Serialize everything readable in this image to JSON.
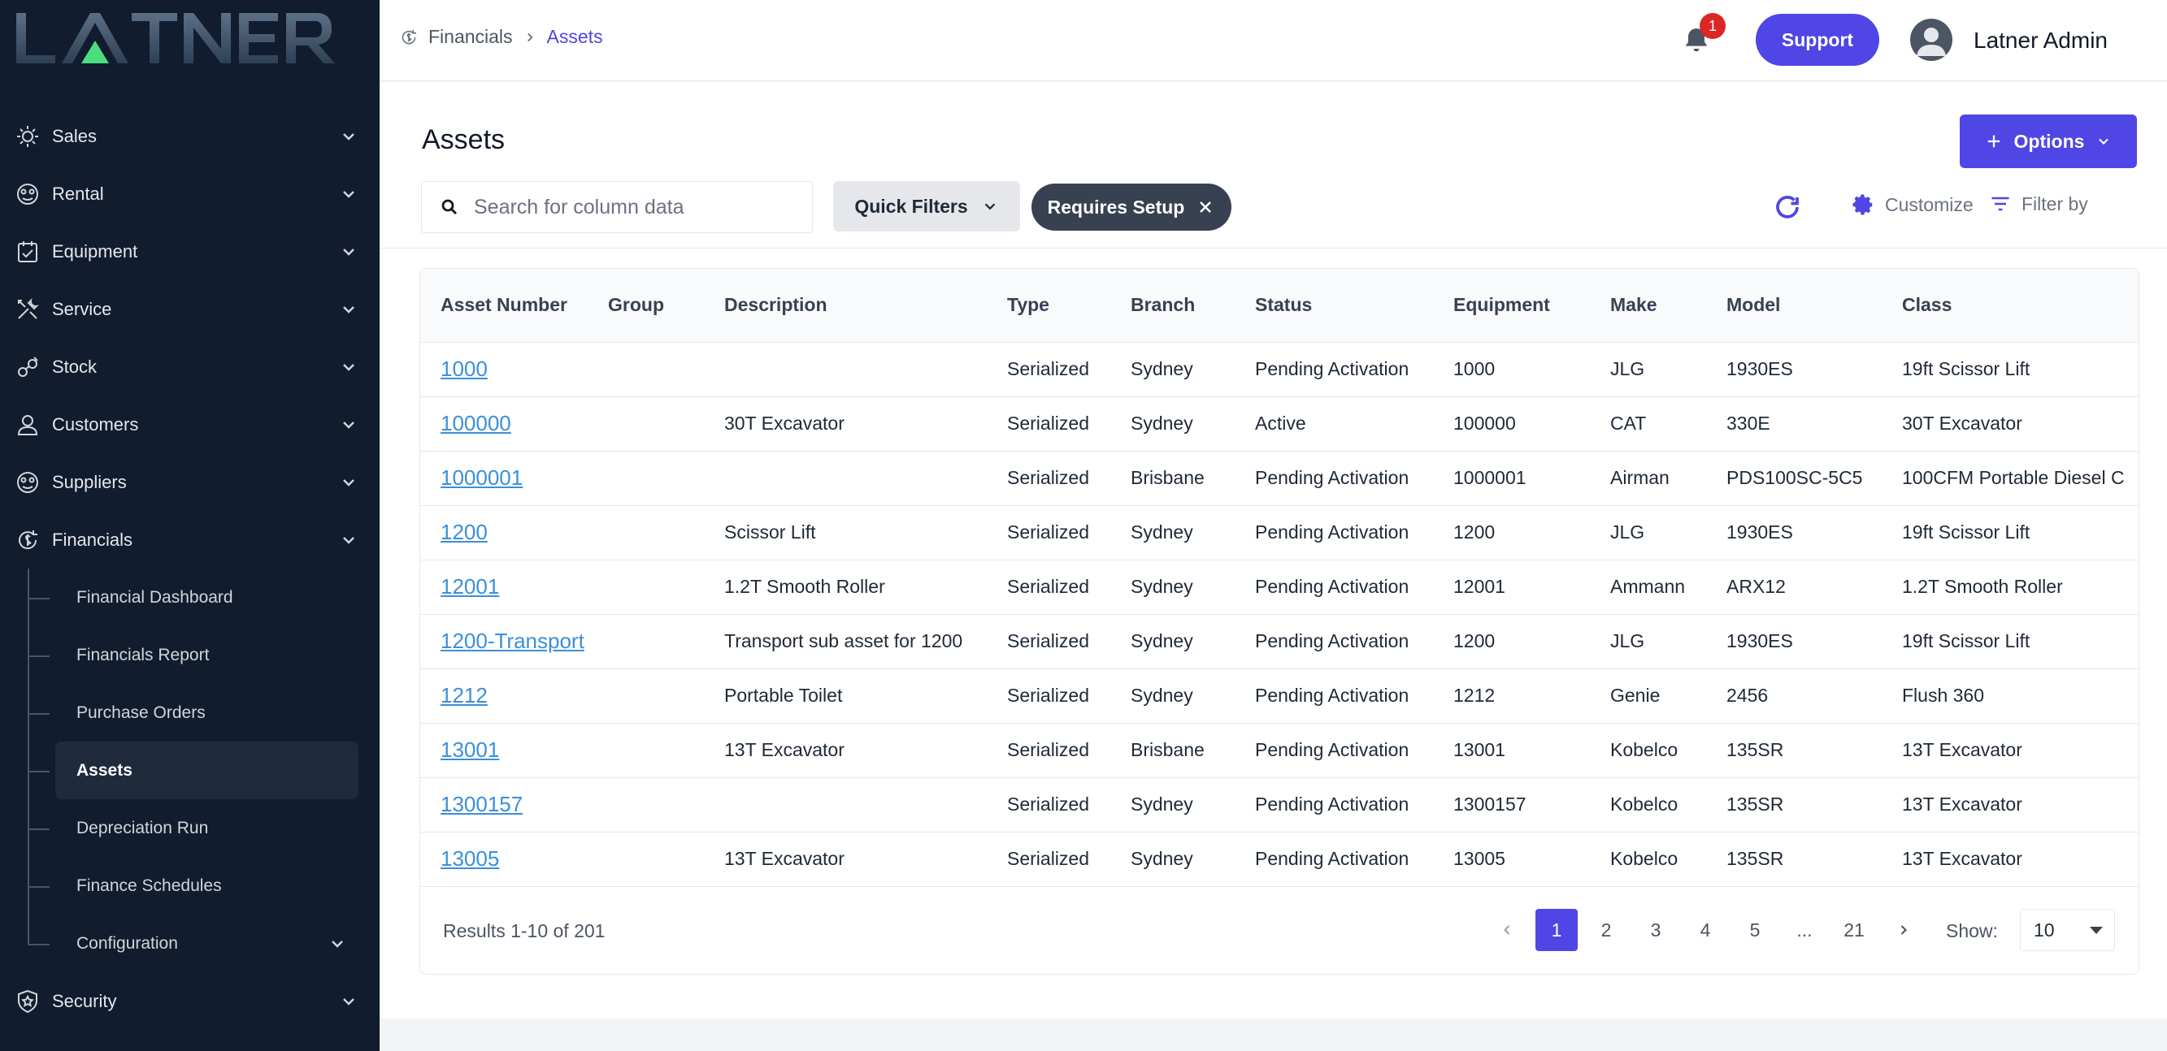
{
  "brand": {
    "logo_text": "LATNER",
    "accent": "#4f46e5",
    "sidebar_bg": "#111c2e",
    "logo_green": "#4ade80"
  },
  "sidebar": {
    "items": [
      {
        "label": "Sales",
        "icon": "sales-icon"
      },
      {
        "label": "Rental",
        "icon": "rental-icon"
      },
      {
        "label": "Equipment",
        "icon": "equipment-icon"
      },
      {
        "label": "Service",
        "icon": "service-icon"
      },
      {
        "label": "Stock",
        "icon": "stock-icon"
      },
      {
        "label": "Customers",
        "icon": "customers-icon"
      },
      {
        "label": "Suppliers",
        "icon": "suppliers-icon"
      },
      {
        "label": "Financials",
        "icon": "financials-icon",
        "expanded": true
      }
    ],
    "financials_sub": [
      {
        "label": "Financial Dashboard"
      },
      {
        "label": "Financials Report"
      },
      {
        "label": "Purchase Orders"
      },
      {
        "label": "Assets",
        "active": true
      },
      {
        "label": "Depreciation Run"
      },
      {
        "label": "Finance Schedules"
      },
      {
        "label": "Configuration"
      }
    ],
    "security": {
      "label": "Security",
      "icon": "security-icon"
    }
  },
  "header": {
    "breadcrumb": {
      "parent": "Financials",
      "current": "Assets"
    },
    "notification_count": "1",
    "support_label": "Support",
    "user_name": "Latner Admin"
  },
  "main": {
    "title": "Assets",
    "options_label": "Options",
    "search_placeholder": "Search for column data",
    "quick_filters_label": "Quick Filters",
    "active_filter_chip": "Requires Setup",
    "customize_label": "Customize",
    "filter_by_label": "Filter by"
  },
  "table": {
    "columns": [
      "Asset Number",
      "Group",
      "Description",
      "Type",
      "Branch",
      "Status",
      "Equipment",
      "Make",
      "Model",
      "Class"
    ],
    "rows": [
      [
        "1000",
        "",
        "",
        "Serialized",
        "Sydney",
        "Pending Activation",
        "1000",
        "JLG",
        "1930ES",
        "19ft Scissor Lift"
      ],
      [
        "100000",
        "",
        "30T Excavator",
        "Serialized",
        "Sydney",
        "Active",
        "100000",
        "CAT",
        "330E",
        "30T Excavator"
      ],
      [
        "1000001",
        "",
        "",
        "Serialized",
        "Brisbane",
        "Pending Activation",
        "1000001",
        "Airman",
        "PDS100SC-5C5",
        "100CFM Portable Diesel C"
      ],
      [
        "1200",
        "",
        "Scissor Lift",
        "Serialized",
        "Sydney",
        "Pending Activation",
        "1200",
        "JLG",
        "1930ES",
        "19ft Scissor Lift"
      ],
      [
        "12001",
        "",
        "1.2T Smooth Roller",
        "Serialized",
        "Sydney",
        "Pending Activation",
        "12001",
        "Ammann",
        "ARX12",
        "1.2T Smooth Roller"
      ],
      [
        "1200-Transport",
        "",
        "Transport sub asset for 1200",
        "Serialized",
        "Sydney",
        "Pending Activation",
        "1200",
        "JLG",
        "1930ES",
        "19ft Scissor Lift"
      ],
      [
        "1212",
        "",
        "Portable Toilet",
        "Serialized",
        "Sydney",
        "Pending Activation",
        "1212",
        "Genie",
        "2456",
        "Flush 360"
      ],
      [
        "13001",
        "",
        "13T Excavator",
        "Serialized",
        "Brisbane",
        "Pending Activation",
        "13001",
        "Kobelco",
        "135SR",
        "13T Excavator"
      ],
      [
        "1300157",
        "",
        "",
        "Serialized",
        "Sydney",
        "Pending Activation",
        "1300157",
        "Kobelco",
        "135SR",
        "13T Excavator"
      ],
      [
        "13005",
        "",
        "13T Excavator",
        "Serialized",
        "Sydney",
        "Pending Activation",
        "13005",
        "Kobelco",
        "135SR",
        "13T Excavator"
      ]
    ]
  },
  "pagination": {
    "results_text": "Results 1-10 of 201",
    "pages": [
      "1",
      "2",
      "3",
      "4",
      "5",
      "...",
      "21"
    ],
    "current_page": "1",
    "show_label": "Show:",
    "page_size": "10"
  }
}
